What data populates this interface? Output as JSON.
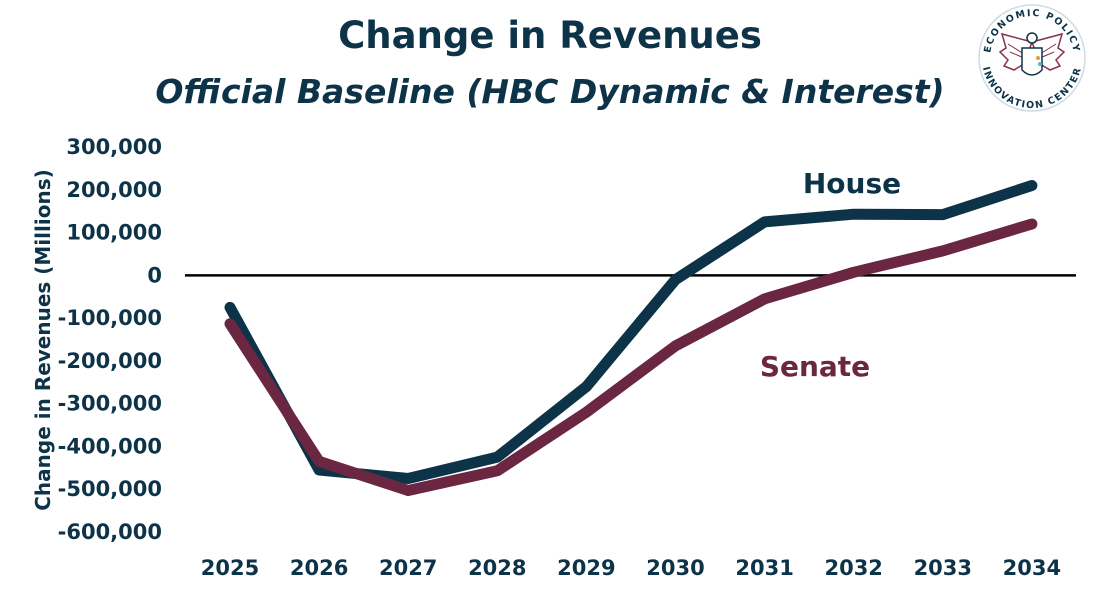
{
  "chart_data": {
    "type": "line",
    "title": "Change in Revenues",
    "subtitle": "Official Baseline (HBC Dynamic & Interest)",
    "ylabel": "Change in Revenues (Millions)",
    "xlabel": "",
    "categories": [
      "2025",
      "2026",
      "2027",
      "2028",
      "2029",
      "2030",
      "2031",
      "2032",
      "2033",
      "2034"
    ],
    "ylim": [
      -600000,
      300000
    ],
    "yticks": [
      300000,
      200000,
      100000,
      0,
      -100000,
      -200000,
      -300000,
      -400000,
      -500000,
      -600000
    ],
    "ytick_labels": [
      "300,000",
      "200,000",
      "100,000",
      "0",
      "-100,000",
      "-200,000",
      "-300,000",
      "-400,000",
      "-500,000",
      "-600,000"
    ],
    "grid": false,
    "legend": "inline labels",
    "series": [
      {
        "name": "House",
        "color": "#0d3349",
        "values": [
          -75000,
          -455000,
          -475000,
          -425000,
          -260000,
          -10000,
          125000,
          143000,
          142000,
          210000
        ]
      },
      {
        "name": "Senate",
        "color": "#6b2641",
        "values": [
          -113000,
          -435000,
          -503000,
          -457000,
          -320000,
          -165000,
          -55000,
          7000,
          57000,
          120000
        ]
      }
    ]
  },
  "logo": {
    "top_text": "ECONOMIC POLICY",
    "bottom_text": "INNOVATION CENTER",
    "icon": "eagle-seal-icon"
  }
}
